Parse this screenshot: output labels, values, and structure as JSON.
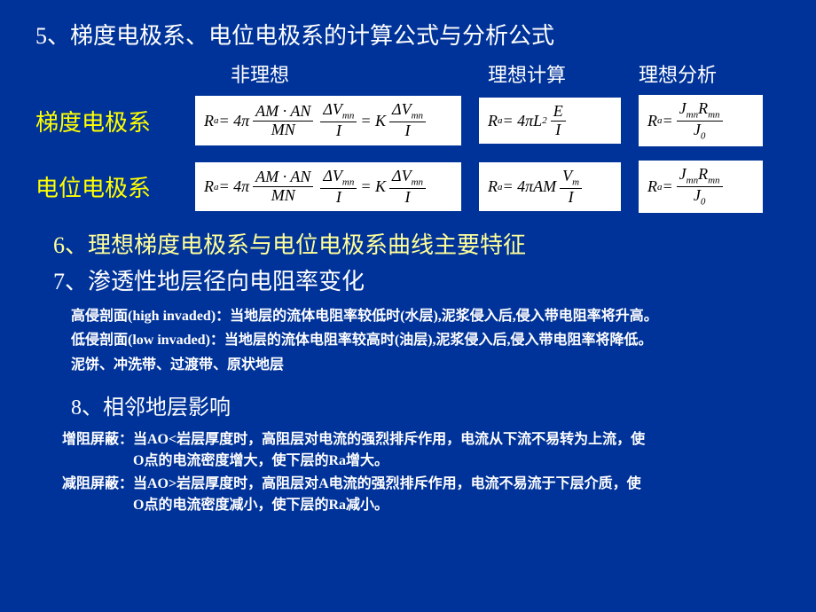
{
  "background_color": "#003399",
  "heading5": "5、梯度电极系、电位电极系的计算公式与分析公式",
  "col_headers": {
    "c1": "非理想",
    "c2": "理想计算",
    "c3": "理想分析"
  },
  "rows": [
    {
      "label": "梯度电极系",
      "formulas": {
        "nonideal": {
          "prefix": "R",
          "prefix_sub": "a",
          "eq1": " = 4π",
          "frac1_num_parts": [
            "AM · AN"
          ],
          "frac1_den_parts": [
            "MN"
          ],
          "frac2_num_parts": [
            "ΔV",
            "mn"
          ],
          "frac2_den_parts": [
            "I"
          ],
          "eq2": " = K",
          "frac3_num_parts": [
            "ΔV",
            "mn"
          ],
          "frac3_den_parts": [
            "I"
          ]
        },
        "ideal_calc": {
          "lhs": "R",
          "lhs_sub": "a",
          "eq": " = 4πL",
          "sup": "2",
          "frac_num": "E",
          "frac_den": "I"
        },
        "ideal_analysis": {
          "lhs": "R",
          "lhs_sub": "a",
          "eq": " = ",
          "frac_num_j": "J",
          "frac_num_j_sub": "mn",
          "frac_num_r": "R",
          "frac_num_r_sub": "mn",
          "frac_den_j": "J",
          "frac_den_j_sub": "0"
        }
      }
    },
    {
      "label": "电位电极系",
      "formulas": {
        "nonideal": {
          "prefix": "R",
          "prefix_sub": "a",
          "eq1": " = 4π",
          "frac1_num_parts": [
            "AM · AN"
          ],
          "frac1_den_parts": [
            "MN"
          ],
          "frac2_num_parts": [
            "ΔV",
            "mn"
          ],
          "frac2_den_parts": [
            "I"
          ],
          "eq2": " = K",
          "frac3_num_parts": [
            "ΔV",
            "mn"
          ],
          "frac3_den_parts": [
            "I"
          ]
        },
        "ideal_calc": {
          "lhs": "R",
          "lhs_sub": "a",
          "eq": " = 4πAM",
          "frac_num": "V",
          "frac_num_sub": "m",
          "frac_den": "I"
        },
        "ideal_analysis": {
          "lhs": "R",
          "lhs_sub": "a",
          "eq": " = ",
          "frac_num_j": "J",
          "frac_num_j_sub": "mn",
          "frac_num_r": "R",
          "frac_num_r_sub": "mn",
          "frac_den_j": "J",
          "frac_den_j_sub": "0"
        }
      }
    }
  ],
  "heading6": "6、理想梯度电极系与电位电极系曲线主要特征",
  "heading7": "7、渗透性地层径向电阻率变化",
  "section7_lines": [
    "高侵剖面(high invaded)：当地层的流体电阻率较低时(水层),泥浆侵入后,侵入带电阻率将升高。",
    "低侵剖面(low invaded)：当地层的流体电阻率较高时(油层),泥浆侵入后,侵入带电阻率将降低。",
    "泥饼、冲洗带、过渡带、原状地层"
  ],
  "heading8": "8、相邻地层影响",
  "section8_lines": [
    {
      "lead": "增阻屏蔽：当AO<岩层厚度时，高阻层对电流的强烈排斥作用，电流从下流不易转为上流，使",
      "cont": "O点的电流密度增大，使下层的Ra增大。"
    },
    {
      "lead": "减阻屏蔽：当AO>岩层厚度时，高阻层对A电流的强烈排斥作用，电流不易流于下层介质，使",
      "cont": "O点的电流密度减小，使下层的Ra减小。"
    }
  ]
}
